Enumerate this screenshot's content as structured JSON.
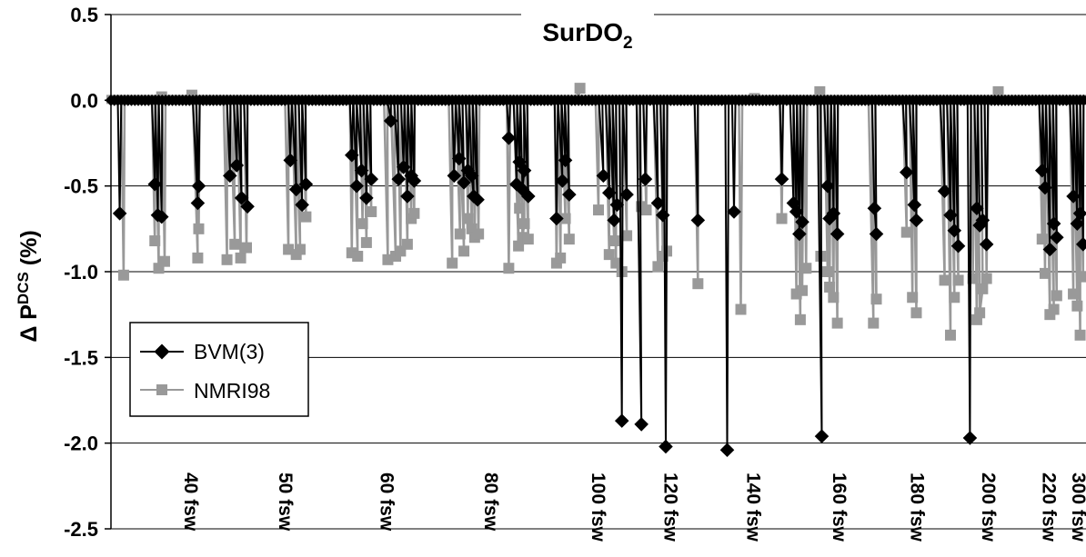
{
  "chart_data": {
    "type": "line",
    "title": "SurDO",
    "title_subscript": "2",
    "ylabel_prefix": "Δ P",
    "ylabel_superscript": "DCS",
    "ylabel_suffix": " (%)",
    "ylim": [
      -2.5,
      0.5
    ],
    "yticks": [
      "0.5",
      "0.0",
      "-0.5",
      "-1.0",
      "-1.5",
      "-2.0",
      "-2.5"
    ],
    "grid": "horizontal",
    "legend_position": "lower-left",
    "depth_labels": [
      "40 fsw",
      "50 fsw",
      "60 fsw",
      "80 fsw",
      "100 fsw",
      "120 fsw",
      "140 fsw",
      "160 fsw",
      "180 fsw",
      "200 fsw",
      "220 fsw",
      "300 fsw"
    ],
    "series": [
      {
        "name": "BVM(3)",
        "color": "#000000",
        "marker": "diamond",
        "dips": [
          [
            0.009,
            -0.66
          ],
          [
            0.045,
            -0.49
          ],
          [
            0.048,
            -0.67
          ],
          [
            0.052,
            -0.68
          ],
          [
            0.089,
            -0.6
          ],
          [
            0.09,
            -0.5
          ],
          [
            0.122,
            -0.44
          ],
          [
            0.129,
            -0.38
          ],
          [
            0.134,
            -0.57
          ],
          [
            0.14,
            -0.62
          ],
          [
            0.184,
            -0.35
          ],
          [
            0.19,
            -0.52
          ],
          [
            0.196,
            -0.61
          ],
          [
            0.2,
            -0.49
          ],
          [
            0.247,
            -0.32
          ],
          [
            0.252,
            -0.5
          ],
          [
            0.257,
            -0.41
          ],
          [
            0.262,
            -0.57
          ],
          [
            0.267,
            -0.46
          ],
          [
            0.287,
            -0.12
          ],
          [
            0.295,
            -0.46
          ],
          [
            0.3,
            -0.39
          ],
          [
            0.304,
            -0.56
          ],
          [
            0.308,
            -0.44
          ],
          [
            0.311,
            -0.47
          ],
          [
            0.352,
            -0.44
          ],
          [
            0.357,
            -0.34
          ],
          [
            0.362,
            -0.48
          ],
          [
            0.366,
            -0.41
          ],
          [
            0.37,
            -0.44
          ],
          [
            0.372,
            -0.56
          ],
          [
            0.376,
            -0.58
          ],
          [
            0.408,
            -0.22
          ],
          [
            0.416,
            -0.49
          ],
          [
            0.419,
            -0.36
          ],
          [
            0.422,
            -0.52
          ],
          [
            0.424,
            -0.41
          ],
          [
            0.428,
            -0.56
          ],
          [
            0.457,
            -0.69
          ],
          [
            0.463,
            -0.47
          ],
          [
            0.466,
            -0.35
          ],
          [
            0.47,
            -0.55
          ],
          [
            0.505,
            -0.44
          ],
          [
            0.511,
            -0.54
          ],
          [
            0.516,
            -0.7
          ],
          [
            0.519,
            -0.61
          ],
          [
            0.524,
            -1.87
          ],
          [
            0.529,
            -0.55
          ],
          [
            0.544,
            -1.89
          ],
          [
            0.548,
            -0.46
          ],
          [
            0.561,
            -0.6
          ],
          [
            0.566,
            -0.67
          ],
          [
            0.569,
            -2.02
          ],
          [
            0.602,
            -0.7
          ],
          [
            0.632,
            -2.04
          ],
          [
            0.639,
            -0.65
          ],
          [
            0.688,
            -0.46
          ],
          [
            0.7,
            -0.6
          ],
          [
            0.703,
            -0.65
          ],
          [
            0.706,
            -0.78
          ],
          [
            0.709,
            -0.71
          ],
          [
            0.729,
            -1.96
          ],
          [
            0.735,
            -0.5
          ],
          [
            0.737,
            -0.69
          ],
          [
            0.741,
            -0.66
          ],
          [
            0.745,
            -0.78
          ],
          [
            0.783,
            -0.63
          ],
          [
            0.785,
            -0.78
          ],
          [
            0.816,
            -0.42
          ],
          [
            0.824,
            -0.61
          ],
          [
            0.826,
            -0.7
          ],
          [
            0.855,
            -0.53
          ],
          [
            0.861,
            -0.67
          ],
          [
            0.865,
            -0.76
          ],
          [
            0.869,
            -0.85
          ],
          [
            0.881,
            -1.97
          ],
          [
            0.888,
            -0.63
          ],
          [
            0.891,
            -0.73
          ],
          [
            0.894,
            -0.7
          ],
          [
            0.898,
            -0.84
          ],
          [
            0.955,
            -0.41
          ],
          [
            0.958,
            -0.51
          ],
          [
            0.963,
            -0.87
          ],
          [
            0.967,
            -0.72
          ],
          [
            0.97,
            -0.8
          ],
          [
            0.987,
            -0.56
          ],
          [
            0.991,
            -0.72
          ],
          [
            0.994,
            -0.66
          ],
          [
            0.997,
            -0.84
          ],
          [
            1.027,
            -0.7
          ],
          [
            1.031,
            -0.66
          ],
          [
            1.035,
            -0.87
          ]
        ]
      },
      {
        "name": "NMRI98",
        "color": "#999999",
        "marker": "square",
        "dips": [
          [
            0.013,
            -1.02
          ],
          [
            0.045,
            -0.82
          ],
          [
            0.049,
            -0.98
          ],
          [
            0.055,
            -0.94
          ],
          [
            0.089,
            -0.92
          ],
          [
            0.09,
            -0.75
          ],
          [
            0.119,
            -0.93
          ],
          [
            0.127,
            -0.84
          ],
          [
            0.133,
            -0.92
          ],
          [
            0.139,
            -0.86
          ],
          [
            0.182,
            -0.87
          ],
          [
            0.19,
            -0.9
          ],
          [
            0.194,
            -0.87
          ],
          [
            0.2,
            -0.68
          ],
          [
            0.247,
            -0.89
          ],
          [
            0.253,
            -0.91
          ],
          [
            0.258,
            -0.72
          ],
          [
            0.262,
            -0.83
          ],
          [
            0.267,
            -0.65
          ],
          [
            0.284,
            -0.93
          ],
          [
            0.292,
            -0.91
          ],
          [
            0.297,
            -0.88
          ],
          [
            0.304,
            -0.84
          ],
          [
            0.308,
            -0.69
          ],
          [
            0.311,
            -0.66
          ],
          [
            0.35,
            -0.95
          ],
          [
            0.358,
            -0.78
          ],
          [
            0.362,
            -0.88
          ],
          [
            0.366,
            -0.69
          ],
          [
            0.37,
            -0.75
          ],
          [
            0.373,
            -0.8
          ],
          [
            0.377,
            -0.78
          ],
          [
            0.408,
            -0.98
          ],
          [
            0.418,
            -0.85
          ],
          [
            0.419,
            -0.63
          ],
          [
            0.422,
            -0.8
          ],
          [
            0.424,
            -0.72
          ],
          [
            0.428,
            -0.81
          ],
          [
            0.457,
            -0.95
          ],
          [
            0.461,
            -0.92
          ],
          [
            0.466,
            -0.69
          ],
          [
            0.47,
            -0.81
          ],
          [
            0.5,
            -0.64
          ],
          [
            0.511,
            -0.9
          ],
          [
            0.516,
            -0.82
          ],
          [
            0.518,
            -0.95
          ],
          [
            0.524,
            -1.0
          ],
          [
            0.529,
            -0.79
          ],
          [
            0.544,
            -0.62
          ],
          [
            0.549,
            -0.64
          ],
          [
            0.561,
            -0.97
          ],
          [
            0.566,
            -0.91
          ],
          [
            0.57,
            -0.88
          ],
          [
            0.602,
            -1.07
          ],
          [
            0.646,
            -1.22
          ],
          [
            0.688,
            -0.69
          ],
          [
            0.703,
            -1.13
          ],
          [
            0.707,
            -1.28
          ],
          [
            0.709,
            -1.11
          ],
          [
            0.713,
            -0.98
          ],
          [
            0.728,
            -0.91
          ],
          [
            0.735,
            -1.0
          ],
          [
            0.737,
            -1.09
          ],
          [
            0.741,
            -1.15
          ],
          [
            0.745,
            -1.3
          ],
          [
            0.782,
            -1.3
          ],
          [
            0.785,
            -1.16
          ],
          [
            0.816,
            -0.77
          ],
          [
            0.822,
            -1.15
          ],
          [
            0.826,
            -1.24
          ],
          [
            0.855,
            -1.05
          ],
          [
            0.861,
            -1.37
          ],
          [
            0.865,
            -1.15
          ],
          [
            0.869,
            -1.05
          ],
          [
            0.884,
            -1.04
          ],
          [
            0.888,
            -1.28
          ],
          [
            0.891,
            -1.24
          ],
          [
            0.894,
            -1.1
          ],
          [
            0.898,
            -1.04
          ],
          [
            0.955,
            -0.81
          ],
          [
            0.958,
            -1.01
          ],
          [
            0.963,
            -1.25
          ],
          [
            0.967,
            -1.22
          ],
          [
            0.97,
            -1.14
          ],
          [
            0.987,
            -1.13
          ],
          [
            0.991,
            -1.2
          ],
          [
            0.994,
            -1.37
          ],
          [
            0.997,
            -1.03
          ],
          [
            1.027,
            -1.1
          ],
          [
            1.031,
            -1.37
          ],
          [
            1.035,
            -1.11
          ]
        ],
        "bumps": [
          [
            0.052,
            0.02
          ],
          [
            0.083,
            0.03
          ],
          [
            0.481,
            0.07
          ],
          [
            0.66,
            0.01
          ],
          [
            0.727,
            0.05
          ],
          [
            0.91,
            0.05
          ],
          [
            1.066,
            0.0
          ]
        ]
      }
    ]
  }
}
